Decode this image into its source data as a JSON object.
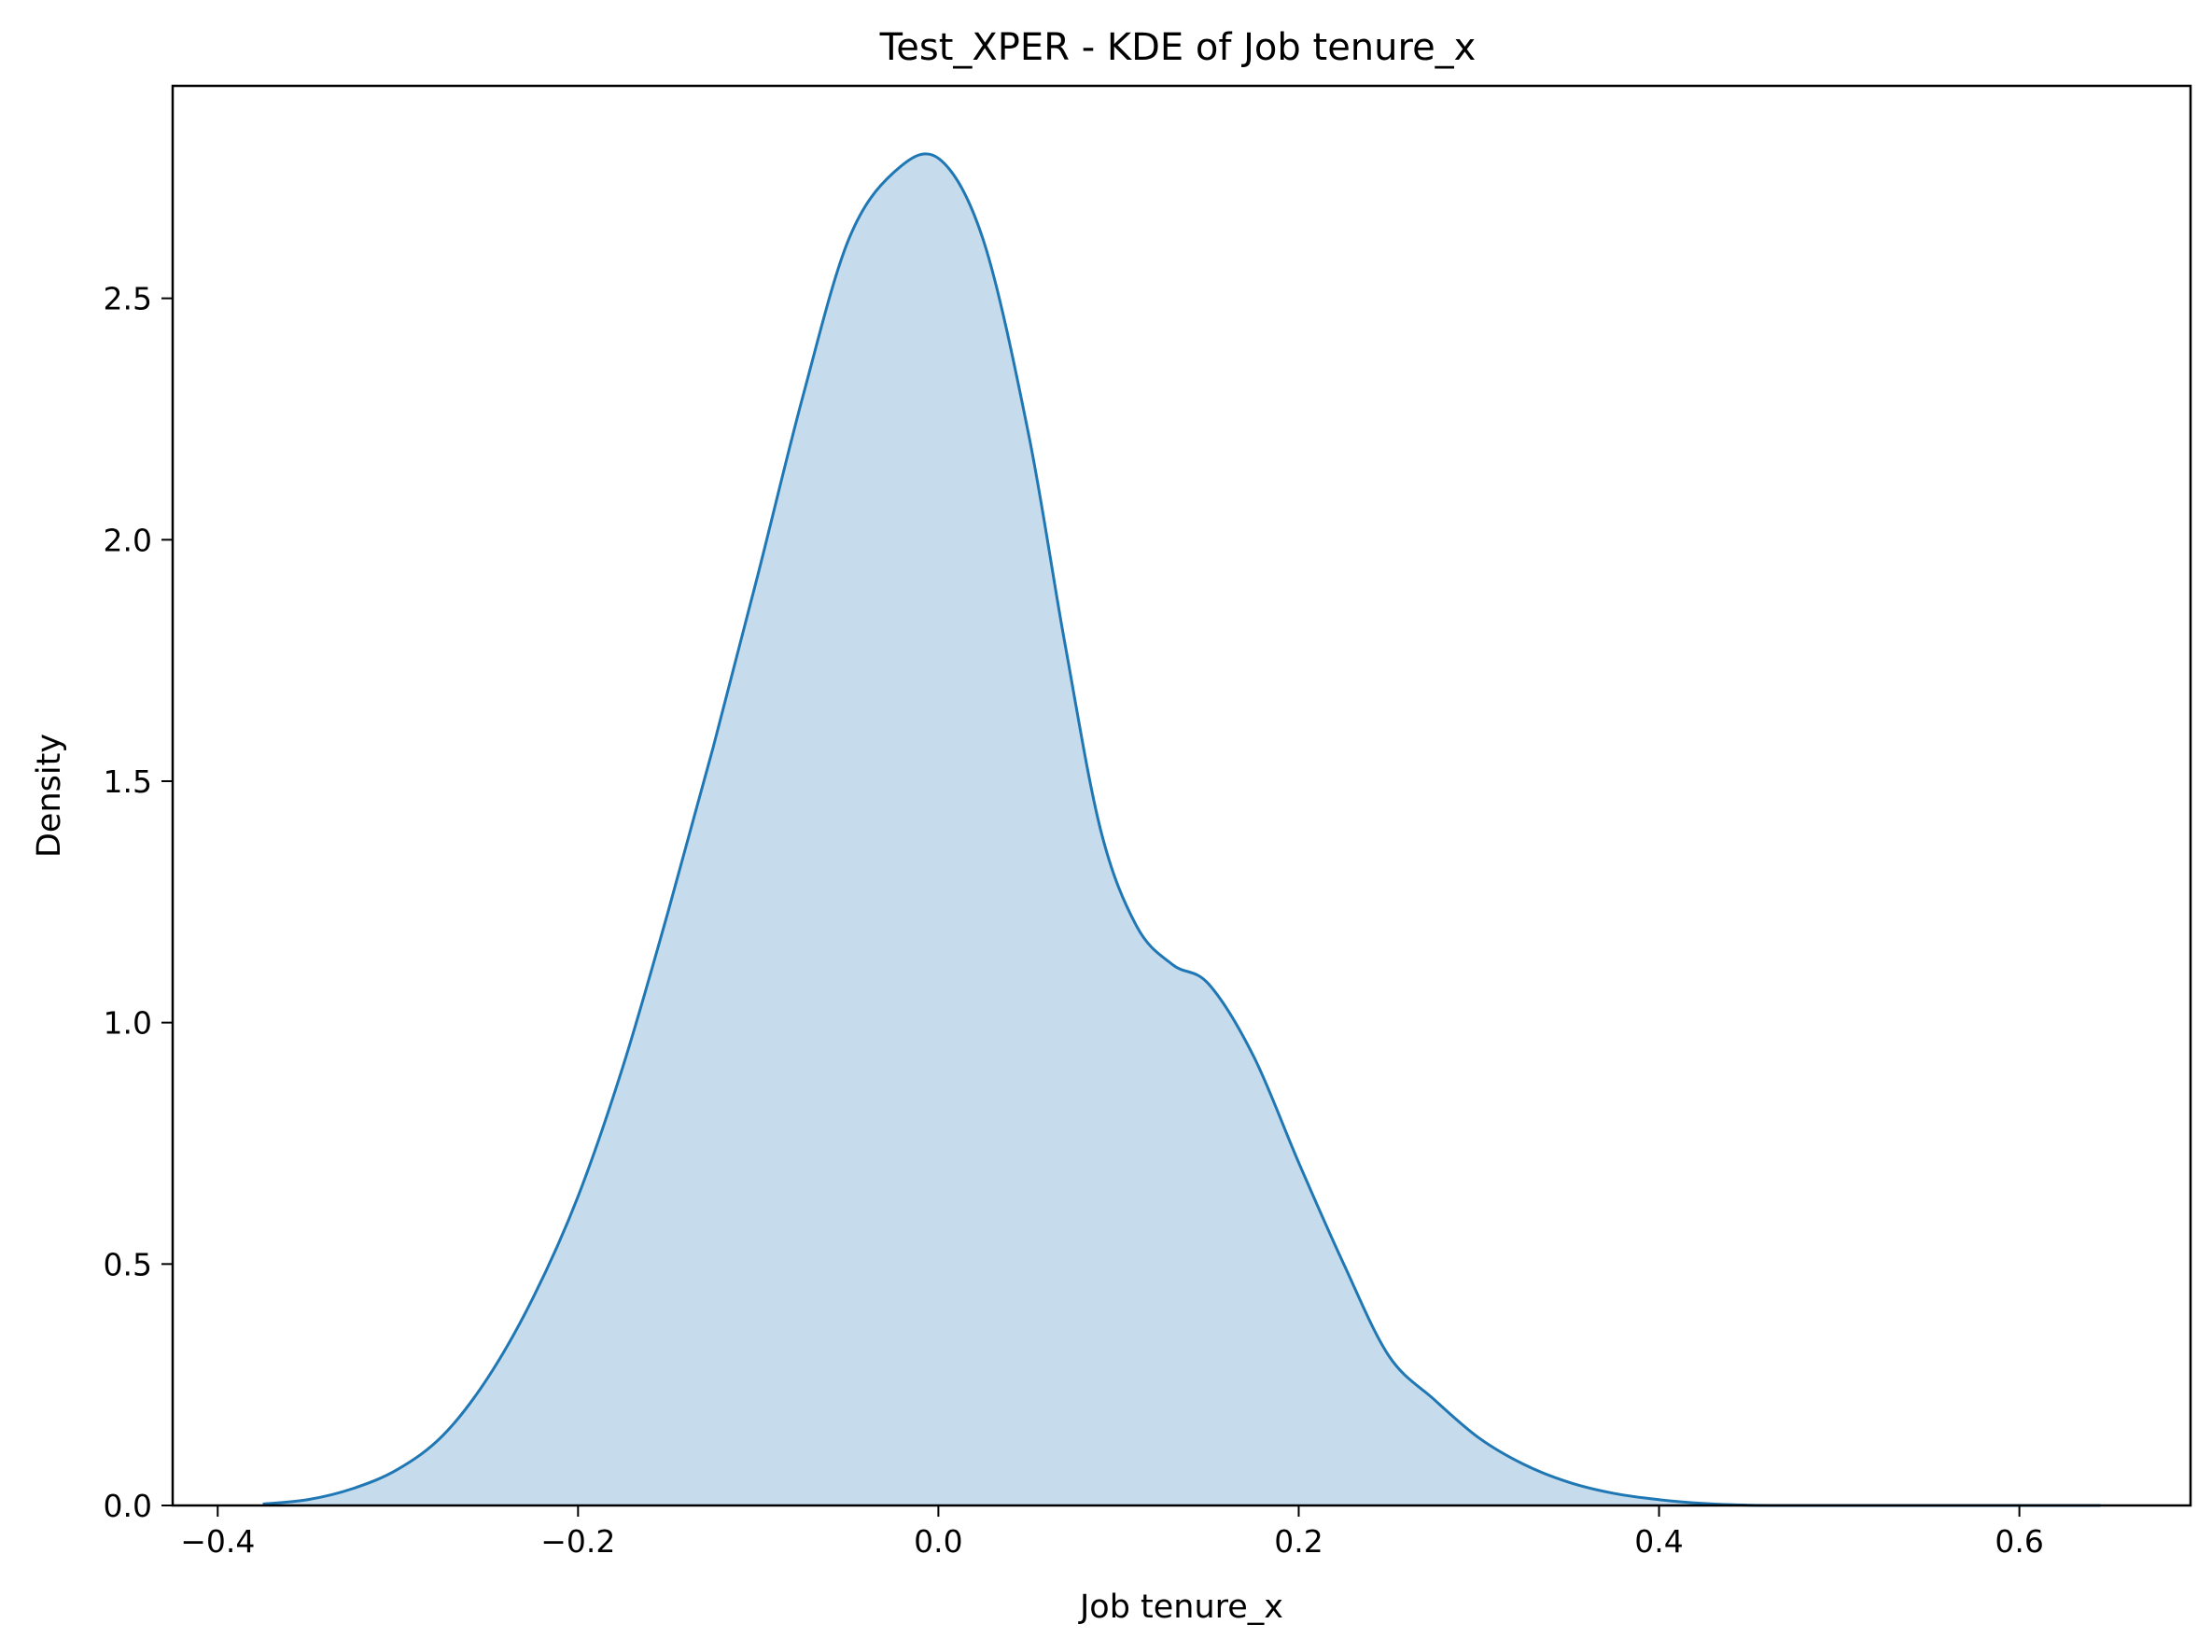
{
  "chart_data": {
    "type": "area",
    "title": "Test_XPER - KDE of Job tenure_x",
    "xlabel": "Job tenure_x",
    "ylabel": "Density",
    "xlim": [
      -0.425,
      0.695
    ],
    "ylim": [
      0.0,
      2.94
    ],
    "x_ticks": [
      -0.4,
      -0.2,
      0.0,
      0.2,
      0.4,
      0.6
    ],
    "x_tick_labels": [
      "−0.4",
      "−0.2",
      "0.0",
      "0.2",
      "0.4",
      "0.6"
    ],
    "y_ticks": [
      0.0,
      0.5,
      1.0,
      1.5,
      2.0,
      2.5
    ],
    "y_tick_labels": [
      "0.0",
      "0.5",
      "1.0",
      "1.5",
      "2.0",
      "2.5"
    ],
    "grid": false,
    "legend": "none",
    "colors": {
      "line": "#1f77b4",
      "fill": "#c6dbec"
    },
    "series": [
      {
        "x": [
          -0.375,
          -0.35,
          -0.325,
          -0.3,
          -0.275,
          -0.25,
          -0.225,
          -0.2,
          -0.175,
          -0.15,
          -0.125,
          -0.1,
          -0.075,
          -0.05,
          -0.025,
          0.0,
          0.025,
          0.05,
          0.07,
          0.09,
          0.11,
          0.13,
          0.15,
          0.175,
          0.2,
          0.225,
          0.25,
          0.275,
          0.3,
          0.325,
          0.35,
          0.375,
          0.4,
          0.425,
          0.45,
          0.475,
          0.5,
          0.525,
          0.55,
          0.575,
          0.6,
          0.625,
          0.645
        ],
        "values": [
          0.003,
          0.012,
          0.035,
          0.075,
          0.145,
          0.265,
          0.43,
          0.64,
          0.91,
          1.23,
          1.57,
          1.93,
          2.3,
          2.62,
          2.76,
          2.79,
          2.62,
          2.22,
          1.79,
          1.4,
          1.2,
          1.12,
          1.08,
          0.93,
          0.71,
          0.5,
          0.31,
          0.22,
          0.14,
          0.085,
          0.048,
          0.025,
          0.012,
          0.004,
          0.0005,
          0.0001,
          0.0,
          0.0,
          0.0,
          0.0,
          0.0,
          0.0,
          0.0
        ]
      }
    ]
  }
}
